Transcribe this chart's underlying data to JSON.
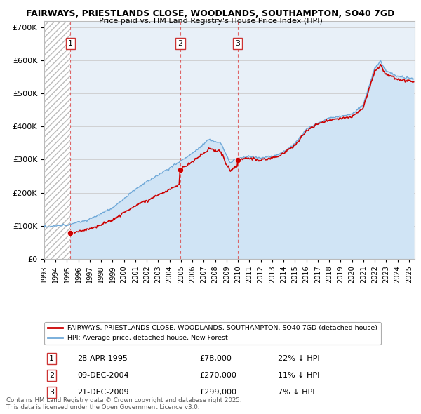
{
  "title_line1": "FAIRWAYS, PRIESTLANDS CLOSE, WOODLANDS, SOUTHAMPTON, SO40 7GD",
  "title_line2": "Price paid vs. HM Land Registry's House Price Index (HPI)",
  "legend_label_red": "FAIRWAYS, PRIESTLANDS CLOSE, WOODLANDS, SOUTHAMPTON, SO40 7GD (detached house)",
  "legend_label_blue": "HPI: Average price, detached house, New Forest",
  "transactions": [
    {
      "num": 1,
      "date": "28-APR-1995",
      "price": 78000,
      "hpi_pct": "22% ↓ HPI",
      "x_year": 1995.29
    },
    {
      "num": 2,
      "date": "09-DEC-2004",
      "price": 270000,
      "hpi_pct": "11% ↓ HPI",
      "x_year": 2004.94
    },
    {
      "num": 3,
      "date": "21-DEC-2009",
      "price": 299000,
      "hpi_pct": "7% ↓ HPI",
      "x_year": 2009.97
    }
  ],
  "footnote": "Contains HM Land Registry data © Crown copyright and database right 2025.\nThis data is licensed under the Open Government Licence v3.0.",
  "ylim": [
    0,
    720000
  ],
  "xlim_start": 1993.0,
  "xlim_end": 2025.5,
  "yticks": [
    0,
    100000,
    200000,
    300000,
    400000,
    500000,
    600000,
    700000
  ],
  "ytick_labels": [
    "£0",
    "£100K",
    "£200K",
    "£300K",
    "£400K",
    "£500K",
    "£600K",
    "£700K"
  ],
  "red_color": "#cc0000",
  "blue_fill_color": "#d0e4f5",
  "blue_line_color": "#6ea8d8",
  "grid_color": "#cccccc",
  "bg_color": "#e8f0f8"
}
